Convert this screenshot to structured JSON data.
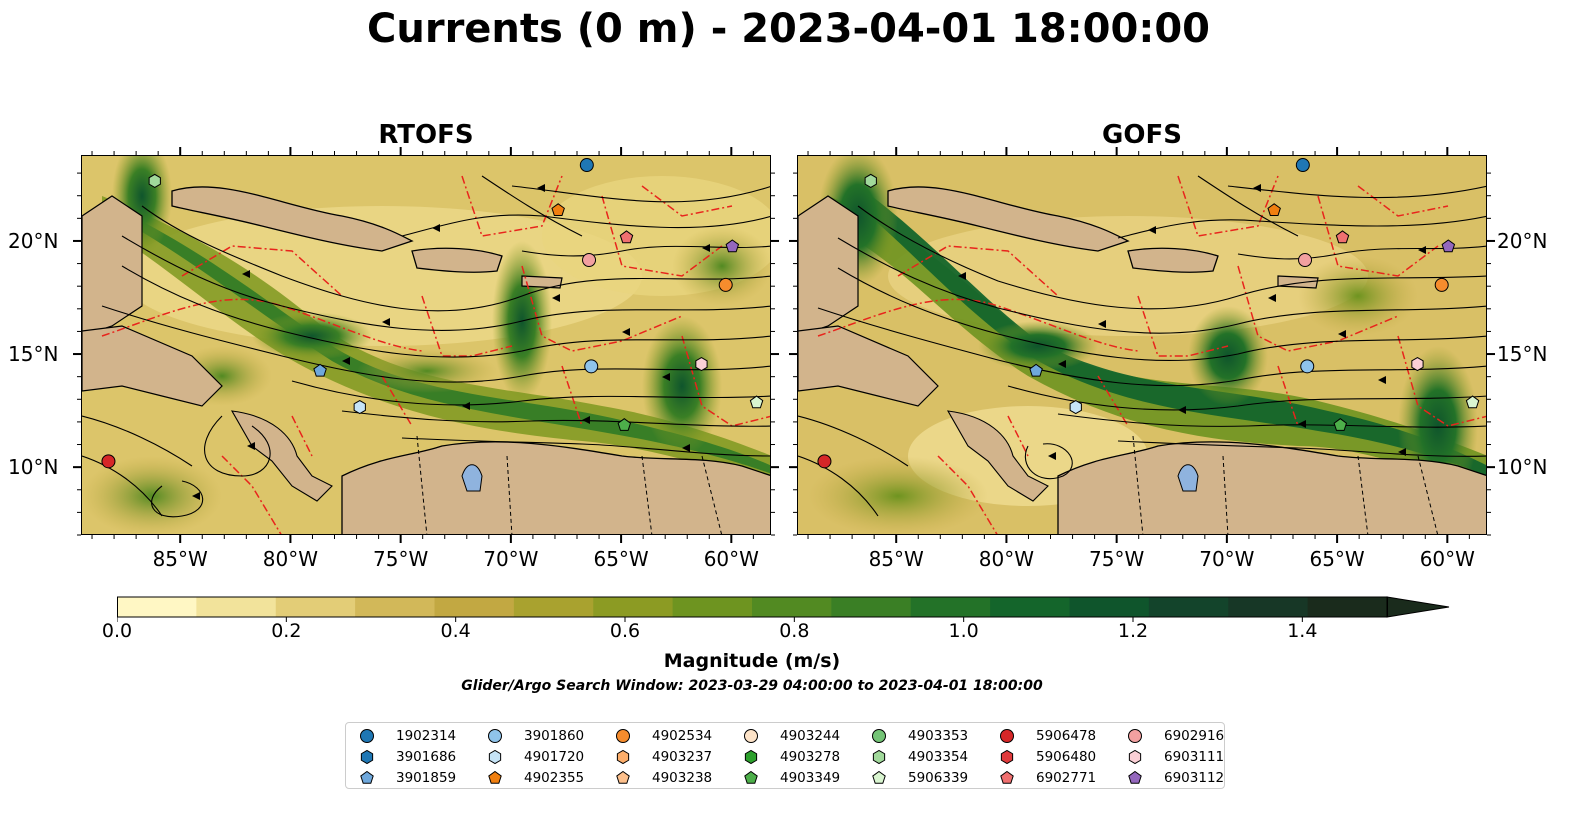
{
  "title": "Currents (0 m) - 2023-04-01 18:00:00",
  "chart_data": {
    "type": "heatmap",
    "variable": "Surface current magnitude with streamlines",
    "panels": [
      {
        "title": "RTOFS",
        "model": "RTOFS"
      },
      {
        "title": "GOFS",
        "model": "GOFS"
      }
    ],
    "x_ticks": [
      "85°W",
      "80°W",
      "75°W",
      "70°W",
      "65°W",
      "60°W"
    ],
    "y_ticks": [
      "20°N",
      "15°N",
      "10°N"
    ],
    "x_range_deg": [
      -89.5,
      -58.2
    ],
    "y_range_deg": [
      7.0,
      23.8
    ],
    "colorbar": {
      "label": "Magnitude (m/s)",
      "ticks": [
        "0.0",
        "0.2",
        "0.4",
        "0.6",
        "0.8",
        "1.0",
        "1.2",
        "1.4"
      ],
      "range": [
        0.0,
        1.5
      ],
      "extend": "max",
      "colors": [
        "#fff7c4",
        "#f2e39b",
        "#e3cd77",
        "#d2b859",
        "#c2a842",
        "#a9a22f",
        "#8c9b23",
        "#6e9420",
        "#528a22",
        "#3a7f25",
        "#237228",
        "#14652b",
        "#0f552c",
        "#13442b",
        "#173726",
        "#1a2b1c"
      ]
    },
    "search_window": "Glider/Argo Search Window: 2023-03-29 04:00:00 to 2023-04-01 18:00:00",
    "legend_placement": "bottom-center",
    "floats": [
      {
        "id": "1902314",
        "marker": "circle",
        "color": "#1f77b4",
        "lon": -66.6,
        "lat": 23.4
      },
      {
        "id": "3901686",
        "marker": "hexagon",
        "color": "#1f77b4",
        "lon": null,
        "lat": null
      },
      {
        "id": "3901859",
        "marker": "pentagon",
        "color": "#6fa8dc",
        "lon": -78.7,
        "lat": 14.3
      },
      {
        "id": "3901860",
        "marker": "circle",
        "color": "#8fc3ea",
        "lon": -66.4,
        "lat": 14.5
      },
      {
        "id": "4901720",
        "marker": "hexagon",
        "color": "#c6e4f7",
        "lon": -76.9,
        "lat": 12.7
      },
      {
        "id": "4902355",
        "marker": "pentagon",
        "color": "#f07f10",
        "lon": -67.9,
        "lat": 21.4
      },
      {
        "id": "4902534",
        "marker": "circle",
        "color": "#f68c2d",
        "lon": -60.3,
        "lat": 18.1
      },
      {
        "id": "4903237",
        "marker": "hexagon",
        "color": "#fdae6b",
        "lon": null,
        "lat": null
      },
      {
        "id": "4903238",
        "marker": "pentagon",
        "color": "#fdc08c",
        "lon": null,
        "lat": null
      },
      {
        "id": "4903244",
        "marker": "circle",
        "color": "#fde3c8",
        "lon": null,
        "lat": null
      },
      {
        "id": "4903278",
        "marker": "hexagon",
        "color": "#2ca02c",
        "lon": null,
        "lat": null
      },
      {
        "id": "4903349",
        "marker": "pentagon",
        "color": "#4daf4a",
        "lon": -64.9,
        "lat": 11.9
      },
      {
        "id": "4903353",
        "marker": "circle",
        "color": "#74c476",
        "lon": null,
        "lat": null
      },
      {
        "id": "4903354",
        "marker": "hexagon",
        "color": "#a1d99b",
        "lon": -86.2,
        "lat": 22.7
      },
      {
        "id": "5906339",
        "marker": "pentagon",
        "color": "#d9f5d0",
        "lon": -58.9,
        "lat": 12.9
      },
      {
        "id": "5906478",
        "marker": "circle",
        "color": "#d62728",
        "lon": -88.3,
        "lat": 10.3
      },
      {
        "id": "5906480",
        "marker": "hexagon",
        "color": "#e03a3c",
        "lon": null,
        "lat": null
      },
      {
        "id": "6902771",
        "marker": "pentagon",
        "color": "#f07070",
        "lon": -64.8,
        "lat": 20.2
      },
      {
        "id": "6902916",
        "marker": "circle",
        "color": "#f2a0a0",
        "lon": -66.5,
        "lat": 19.2
      },
      {
        "id": "6903111",
        "marker": "hexagon",
        "color": "#fbd0d6",
        "lon": -61.4,
        "lat": 14.6
      },
      {
        "id": "6903112",
        "marker": "pentagon",
        "color": "#9467bd",
        "lon": -60.0,
        "lat": 19.8
      }
    ]
  }
}
